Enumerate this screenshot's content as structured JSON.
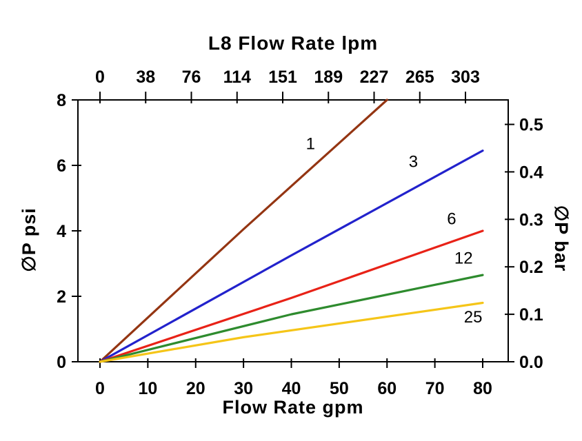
{
  "chart_data": {
    "type": "line",
    "title": "L8 Flow Rate lpm",
    "grid": false,
    "legend": "inline-labels",
    "x_axis_bottom": {
      "label": "Flow Rate gpm",
      "unit": "gpm",
      "ticks": [
        0,
        10,
        20,
        30,
        40,
        50,
        60,
        70,
        80
      ],
      "range": [
        0,
        80
      ]
    },
    "x_axis_top": {
      "label": "L8 Flow Rate lpm",
      "unit": "lpm",
      "ticks": [
        0,
        38,
        76,
        114,
        151,
        189,
        227,
        265,
        303
      ],
      "range": [
        0,
        303
      ]
    },
    "y_axis_left": {
      "label": "∅P psi",
      "unit": "psi",
      "ticks": [
        0,
        2,
        4,
        6,
        8
      ],
      "range": [
        0,
        8
      ]
    },
    "y_axis_right": {
      "label": "∅P bar",
      "unit": "bar",
      "ticks": [
        "0.0",
        "0.1",
        "0.2",
        "0.3",
        "0.4",
        "0.5"
      ],
      "range": [
        0,
        0.55
      ],
      "psi_per_bar": 14.5038
    },
    "series": [
      {
        "name": "1",
        "color": "#943512",
        "points": [
          [
            0,
            0
          ],
          [
            30,
            4.05
          ],
          [
            60,
            8
          ]
        ],
        "label_pos": [
          44,
          6.5
        ]
      },
      {
        "name": "3",
        "color": "#2222CC",
        "points": [
          [
            0,
            0
          ],
          [
            40,
            3.25
          ],
          [
            80,
            6.45
          ]
        ],
        "label_pos": [
          65.5,
          5.95
        ]
      },
      {
        "name": "6",
        "color": "#E82217",
        "points": [
          [
            0,
            0
          ],
          [
            40,
            1.95
          ],
          [
            80,
            4.0
          ]
        ],
        "label_pos": [
          73.5,
          4.2
        ]
      },
      {
        "name": "12",
        "color": "#2E8B2E",
        "points": [
          [
            0,
            0
          ],
          [
            40,
            1.45
          ],
          [
            80,
            2.65
          ]
        ],
        "label_pos": [
          76,
          3.0
        ]
      },
      {
        "name": "25",
        "color": "#F5C518",
        "points": [
          [
            0,
            0
          ],
          [
            30,
            0.75
          ],
          [
            80,
            1.8
          ]
        ],
        "label_pos": [
          78,
          1.2
        ]
      }
    ]
  }
}
